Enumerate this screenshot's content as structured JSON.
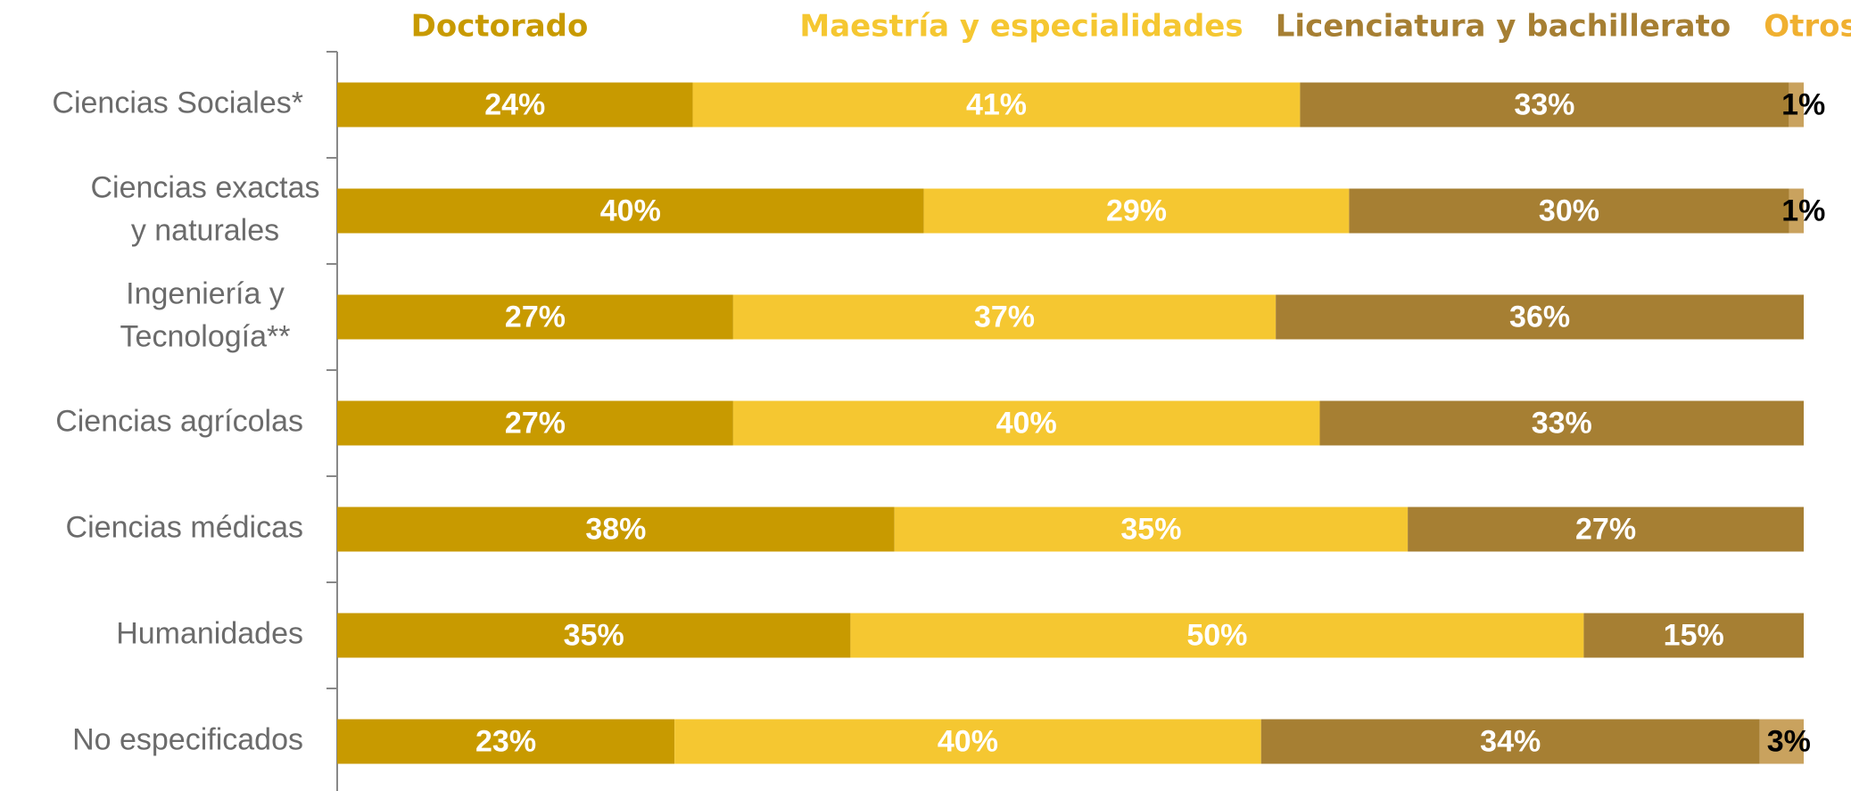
{
  "chart_data": {
    "type": "stacked-bar-horizontal",
    "categories": [
      "Ciencias Sociales*",
      "Ciencias exactas\ny naturales",
      "Ingeniería y\nTecnología**",
      "Ciencias agrícolas",
      "Ciencias médicas",
      "Humanidades",
      "No especificados"
    ],
    "series": [
      {
        "name": "Doctorado",
        "color": "#c89a00",
        "legend_color": "#c89a00",
        "label_color": "#ffffff",
        "values": [
          24,
          40,
          27,
          27,
          38,
          35,
          23
        ],
        "value_labels": [
          "24%",
          "40%",
          "27%",
          "27%",
          "38%",
          "35%",
          "23%"
        ]
      },
      {
        "name": "Maestría y especialidades",
        "color": "#f5c731",
        "legend_color": "#f5c731",
        "label_color": "#ffffff",
        "values": [
          41,
          29,
          37,
          40,
          35,
          50,
          40
        ],
        "value_labels": [
          "41%",
          "29%",
          "37%",
          "40%",
          "35%",
          "50%",
          "40%"
        ]
      },
      {
        "name": "Licenciatura y bachillerato",
        "color": "#a67f33",
        "legend_color": "#a67f33",
        "label_color": "#ffffff",
        "values": [
          33,
          30,
          36,
          33,
          27,
          15,
          34
        ],
        "value_labels": [
          "33%",
          "30%",
          "36%",
          "33%",
          "27%",
          "15%",
          "34%"
        ]
      },
      {
        "name": "Otros",
        "color": "#c9a25e",
        "legend_color": "#f0b030",
        "label_color": "#000000",
        "values": [
          1,
          1,
          null,
          null,
          null,
          null,
          3
        ],
        "value_labels": [
          "1%",
          "1%",
          null,
          null,
          null,
          null,
          "3%"
        ]
      }
    ]
  }
}
